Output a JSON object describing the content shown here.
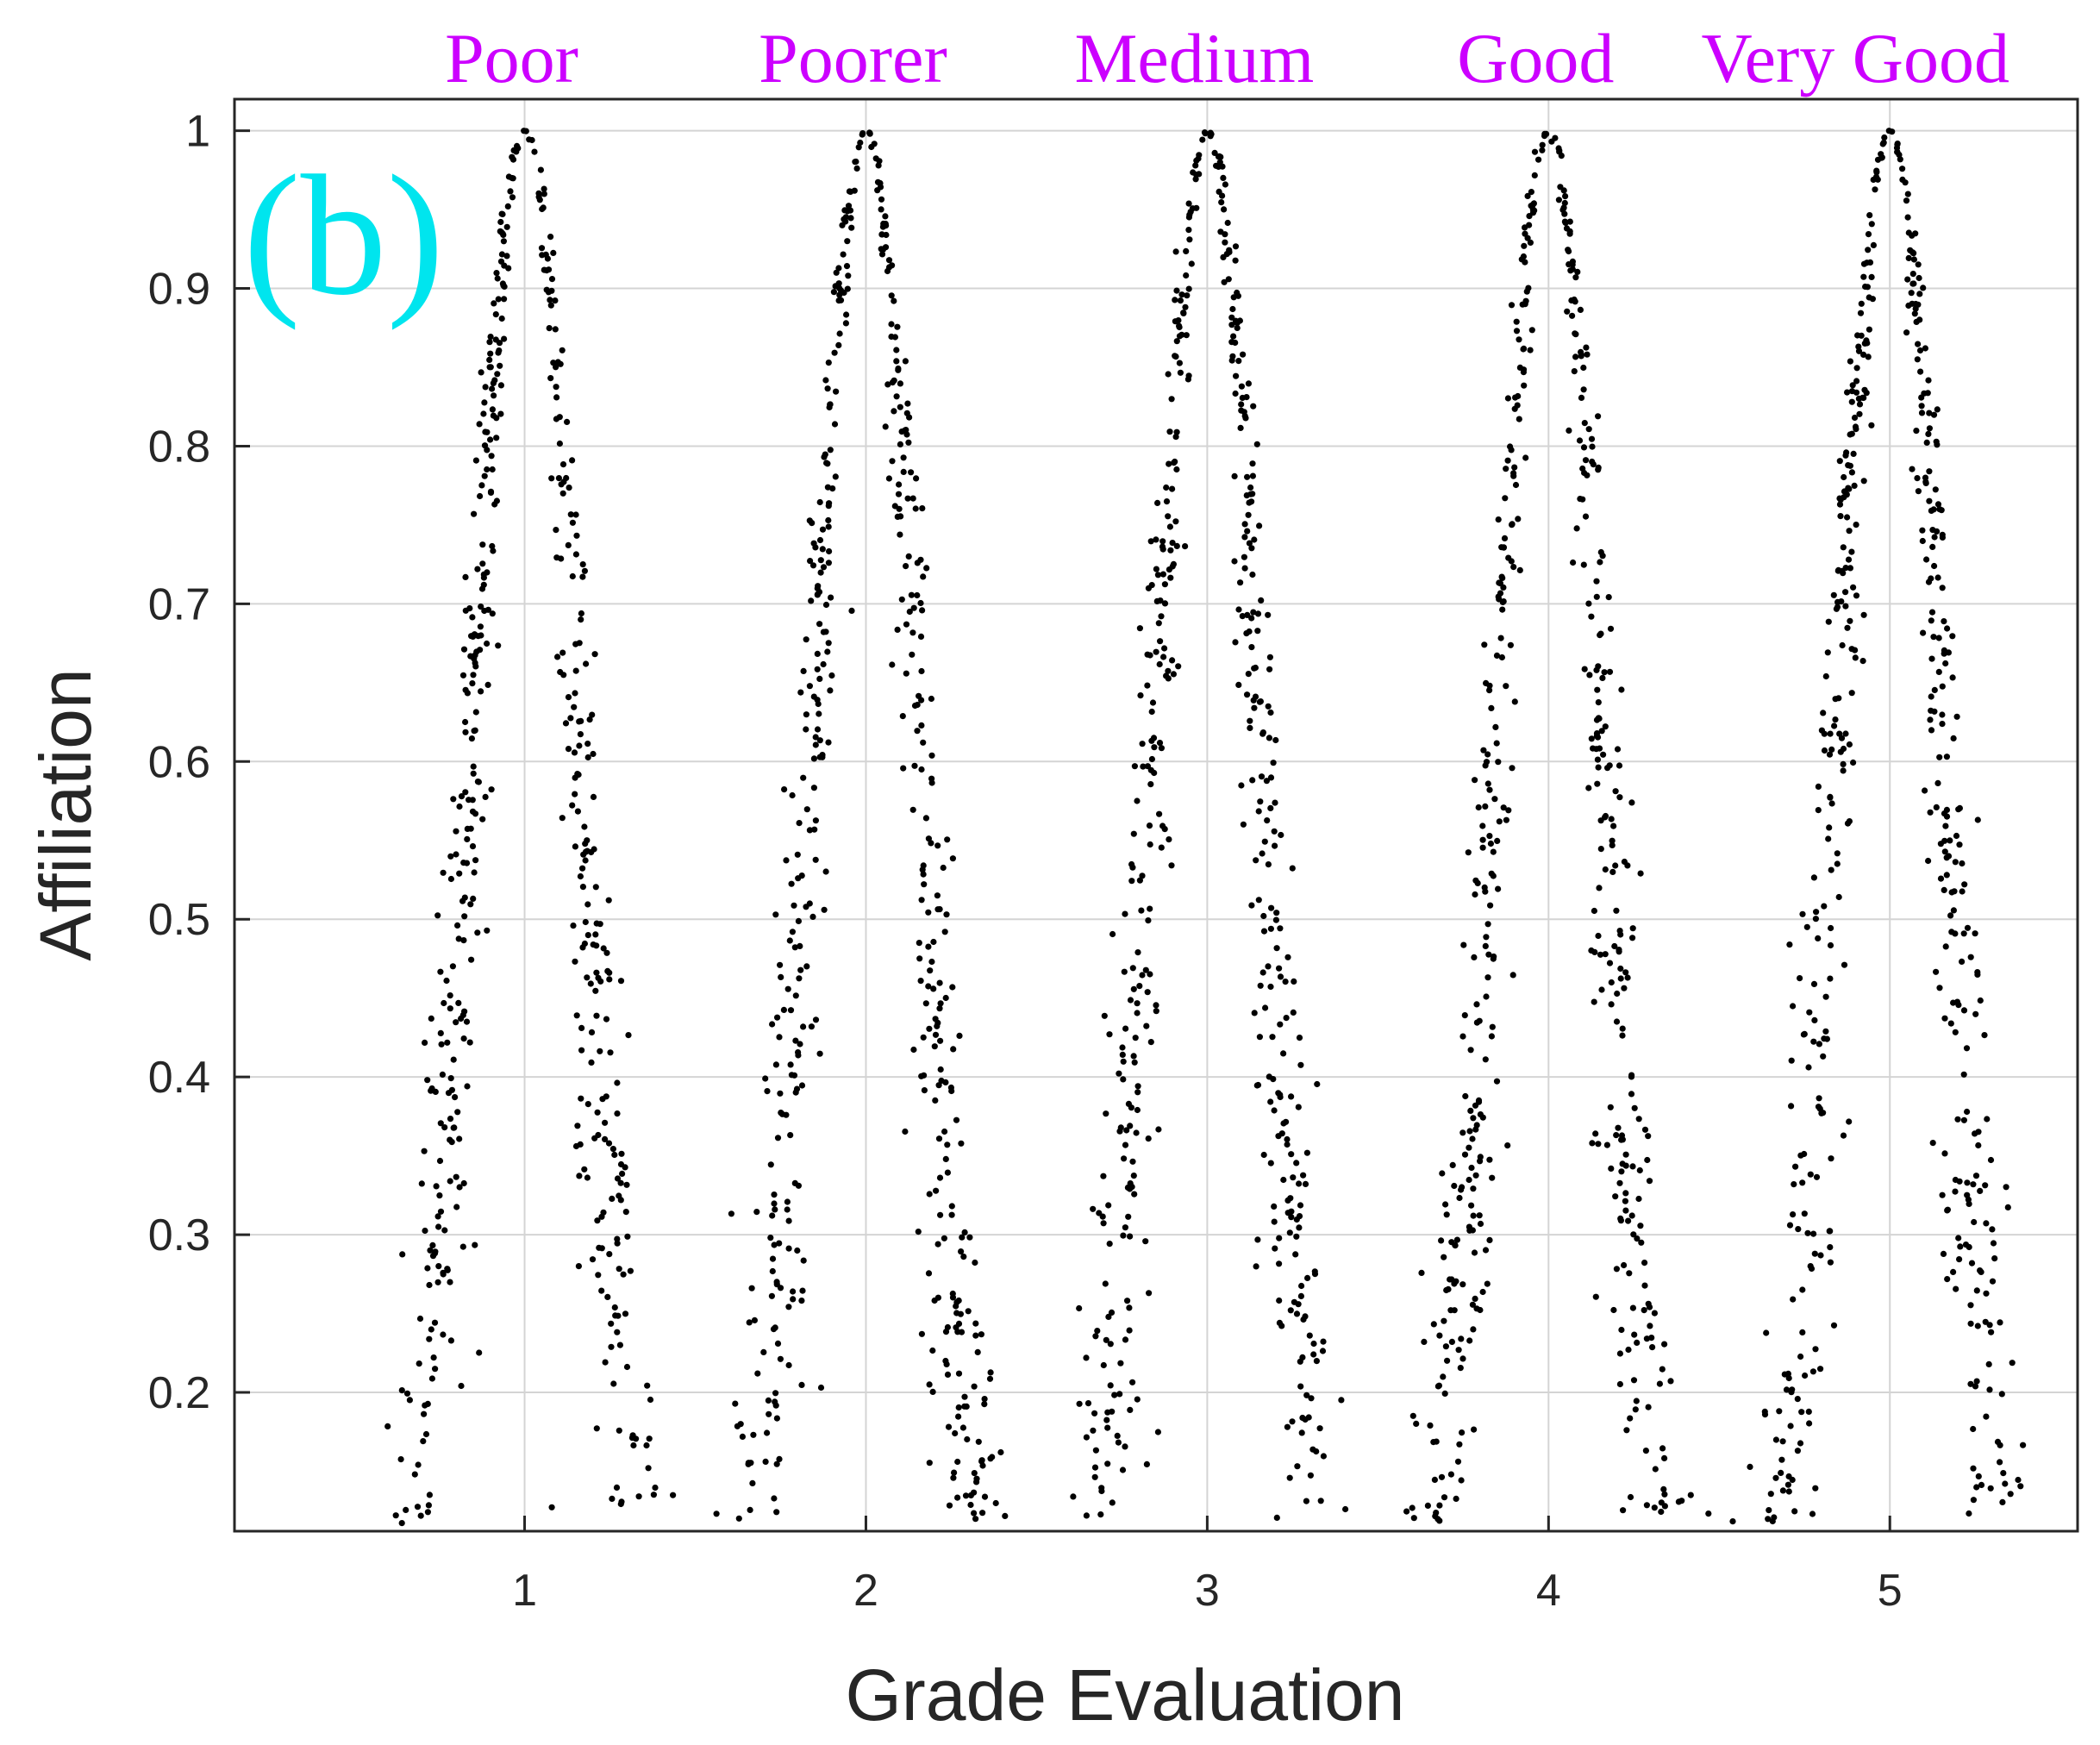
{
  "chart_data": {
    "type": "scatter",
    "panel_label": "(b)",
    "xlabel": "Grade Evaluation",
    "ylabel": "Affiliation",
    "xlim": [
      0.15,
      5.55
    ],
    "ylim": [
      0.112,
      1.02
    ],
    "xticks": [
      "1",
      "2",
      "3",
      "4",
      "5"
    ],
    "yticks": [
      "0.2",
      "0.3",
      "0.4",
      "0.5",
      "0.6",
      "0.7",
      "0.8",
      "0.9",
      "1"
    ],
    "grid": true,
    "grade_labels": [
      "Poor",
      "Poorer",
      "Medium",
      "Good",
      "Very Good"
    ],
    "series": [
      {
        "center": 1,
        "peak": 1.0,
        "spread_approx": 0.16,
        "count_approx": 500
      },
      {
        "center": 2,
        "peak": 1.0,
        "spread_approx": 0.16,
        "count_approx": 500
      },
      {
        "center": 3,
        "peak": 1.0,
        "spread_approx": 0.16,
        "count_approx": 500
      },
      {
        "center": 4,
        "peak": 1.0,
        "spread_approx": 0.16,
        "count_approx": 500
      },
      {
        "center": 5,
        "peak": 1.0,
        "spread_approx": 0.16,
        "count_approx": 500
      }
    ],
    "colors": {
      "points": "#000000",
      "grade_labels": "#cc00ff",
      "panel_label": "#00e5ee",
      "axis": "#262626",
      "grid": "#d4d4d4"
    }
  }
}
